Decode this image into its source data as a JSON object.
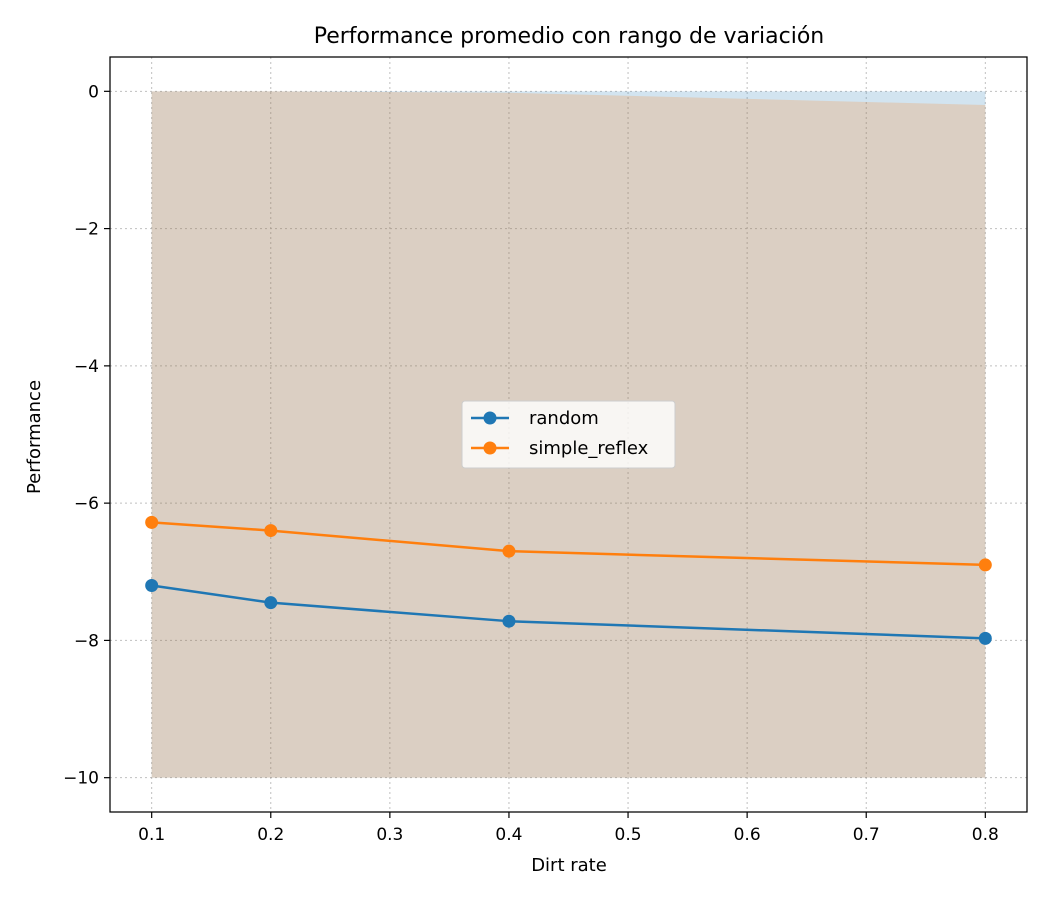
{
  "chart_data": {
    "type": "line",
    "title": "Performance promedio con rango de variación",
    "xlabel": "Dirt rate",
    "ylabel": "Performance",
    "x": [
      0.1,
      0.2,
      0.4,
      0.8
    ],
    "xlim": [
      0.065,
      0.835
    ],
    "ylim": [
      -10.5,
      0.5
    ],
    "xticks": [
      0.1,
      0.2,
      0.3,
      0.4,
      0.5,
      0.6,
      0.7,
      0.8
    ],
    "yticks": [
      0,
      -2,
      -4,
      -6,
      -8,
      -10
    ],
    "xtick_labels": [
      "0.1",
      "0.2",
      "0.3",
      "0.4",
      "0.5",
      "0.6",
      "0.7",
      "0.8"
    ],
    "ytick_labels": [
      "0",
      "−2",
      "−4",
      "−6",
      "−8",
      "−10"
    ],
    "grid": true,
    "legend_position": "center",
    "series": [
      {
        "name": "random",
        "color": "#1f77b4",
        "values": [
          -7.2,
          -7.45,
          -7.72,
          -7.97
        ],
        "range_min": [
          -10,
          -10,
          -10,
          -10
        ],
        "range_max": [
          0,
          0,
          0,
          0
        ]
      },
      {
        "name": "simple_reflex",
        "color": "#ff7f0e",
        "values": [
          -6.28,
          -6.4,
          -6.7,
          -6.9
        ],
        "range_min": [
          -10,
          -10,
          -10,
          -10
        ],
        "range_max": [
          0,
          0,
          -0.02,
          -0.2
        ]
      }
    ]
  }
}
